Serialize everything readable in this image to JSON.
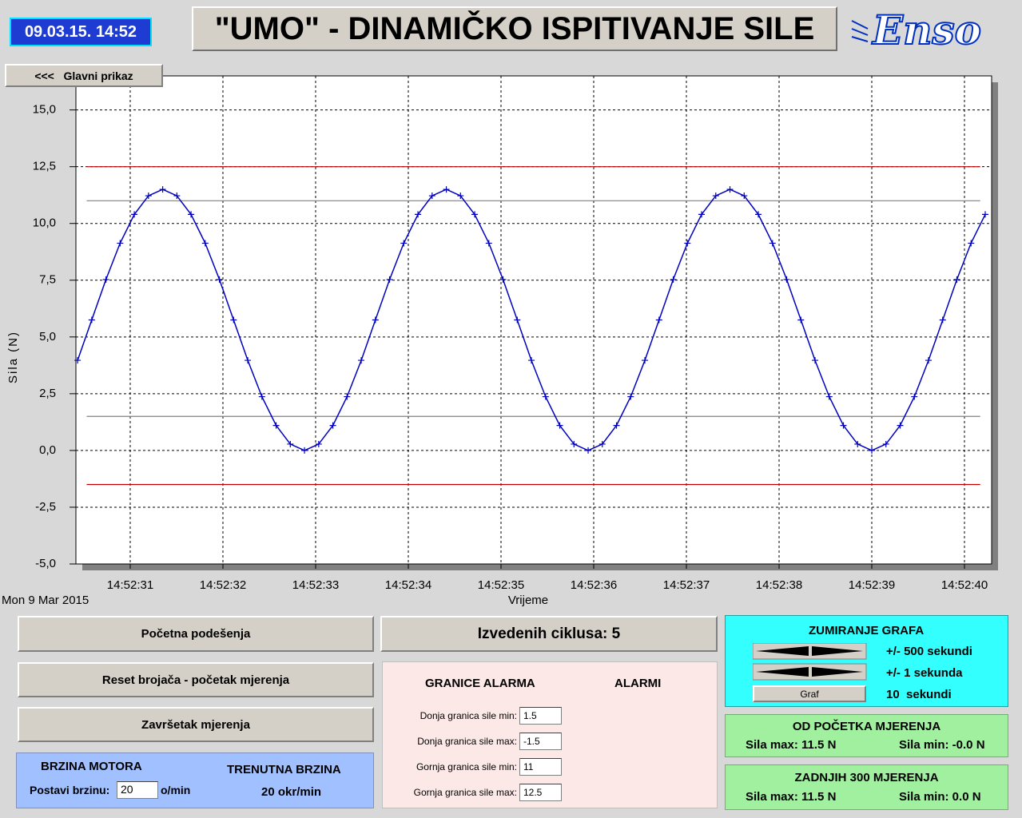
{
  "header": {
    "datetime": "09.03.15. 14:52",
    "title": "\"UMO\" - DINAMIČKO ISPITIVANJE SILE",
    "logo": "Enso"
  },
  "nav_button": "<<<   Glavni prikaz",
  "chart_data": {
    "type": "line",
    "y_label": "Sila (N)",
    "x_label": "Vrijeme",
    "date_label": "Mon 9 Mar 2015",
    "xlim": [
      30.414,
      40.293
    ],
    "ylim": [
      -5,
      16.5
    ],
    "xticks": [
      {
        "value": 31,
        "label": "14:52:31"
      },
      {
        "value": 32,
        "label": "14:52:32"
      },
      {
        "value": 33,
        "label": "14:52:33"
      },
      {
        "value": 34,
        "label": "14:52:34"
      },
      {
        "value": 35,
        "label": "14:52:35"
      },
      {
        "value": 36,
        "label": "14:52:36"
      },
      {
        "value": 37,
        "label": "14:52:37"
      },
      {
        "value": 38,
        "label": "14:52:38"
      },
      {
        "value": 39,
        "label": "14:52:39"
      },
      {
        "value": 40,
        "label": "14:52:40"
      }
    ],
    "yticks": [
      {
        "value": -5,
        "label": "-5,0"
      },
      {
        "value": -2.5,
        "label": "-2,5"
      },
      {
        "value": 0,
        "label": "0,0"
      },
      {
        "value": 2.5,
        "label": "2,5"
      },
      {
        "value": 5,
        "label": "5,0"
      },
      {
        "value": 7.5,
        "label": "7,5"
      },
      {
        "value": 10,
        "label": "10,0"
      },
      {
        "value": 12.5,
        "label": "12,5"
      },
      {
        "value": 15,
        "label": "15,0"
      }
    ],
    "grid": true,
    "x": [
      30.432,
      30.585,
      30.738,
      30.891,
      31.044,
      31.197,
      31.35,
      31.503,
      31.656,
      31.809,
      31.962,
      32.115,
      32.268,
      32.421,
      32.574,
      32.727,
      32.88,
      33.033,
      33.186,
      33.339,
      33.492,
      33.645,
      33.798,
      33.951,
      34.104,
      34.257,
      34.41,
      34.563,
      34.716,
      34.869,
      35.022,
      35.175,
      35.328,
      35.481,
      35.634,
      35.787,
      35.94,
      36.093,
      36.246,
      36.399,
      36.552,
      36.705,
      36.858,
      37.011,
      37.164,
      37.317,
      37.47,
      37.623,
      37.776,
      37.929,
      38.082,
      38.235,
      38.388,
      38.541,
      38.694,
      38.847,
      39.0,
      39.153,
      39.306,
      39.459,
      39.612,
      39.765,
      39.918,
      40.071,
      40.224
    ],
    "series": [
      {
        "color": "#0000c0",
        "values": [
          3.97,
          5.75,
          7.53,
          9.13,
          10.4,
          11.22,
          11.5,
          11.22,
          10.4,
          9.13,
          7.53,
          5.75,
          3.97,
          2.37,
          1.1,
          0.28,
          0,
          0.28,
          1.1,
          2.37,
          3.97,
          5.75,
          7.53,
          9.13,
          10.4,
          11.22,
          11.5,
          11.22,
          10.4,
          9.13,
          7.53,
          5.75,
          3.97,
          2.37,
          1.1,
          0.28,
          0,
          0.28,
          1.1,
          2.37,
          3.97,
          5.75,
          7.53,
          9.13,
          10.4,
          11.22,
          11.5,
          11.22,
          10.4,
          9.13,
          7.53,
          5.75,
          3.97,
          2.37,
          1.1,
          0.28,
          0,
          0.28,
          1.1,
          2.37,
          3.97,
          5.75,
          7.53,
          9.13,
          10.4
        ]
      }
    ],
    "reference_lines": [
      {
        "y": 12.5,
        "x": [
          30.53,
          40.17
        ],
        "color": "#c00000"
      },
      {
        "y": 11,
        "x": [
          30.53,
          40.17
        ],
        "color": "#808080"
      },
      {
        "y": 1.5,
        "x": [
          30.53,
          40.17
        ],
        "color": "#808080"
      },
      {
        "y": -1.5,
        "x": [
          30.53,
          40.17
        ],
        "color": "#c00000"
      }
    ]
  },
  "controls": {
    "buttons": [
      "Početna podešenja",
      "Reset brojača - početak mjerenja",
      "Završetak mjerenja"
    ],
    "motor": {
      "title": "BRZINA MOTORA",
      "set_label": "Postavi brzinu:",
      "set_value": "20",
      "set_unit": "o/min",
      "current_title": "TRENUTNA BRZINA",
      "current_value": "20 okr/min"
    },
    "cycles": "Izvedenih ciklusa: 5",
    "alarms": {
      "title": "GRANICE ALARMA",
      "alarms_title": "ALARMI",
      "rows": [
        [
          "Donja granica sile min:",
          "1.5"
        ],
        [
          "Donja granica sile max:",
          "-1.5"
        ],
        [
          "Gornja granica sile min:",
          "11"
        ],
        [
          "Gornja granica sile max:",
          "12.5"
        ]
      ]
    },
    "zoom": {
      "title": "ZUMIRANJE GRAFA",
      "row1": "+/- 500 sekundi",
      "row2": "+/- 1 sekunda",
      "graf_button": "Graf",
      "row3": "10  sekundi"
    },
    "from_start": {
      "title": "OD POČETKA MJERENJA",
      "max": "Sila max: 11.5 N",
      "min": "Sila min: -0.0 N"
    },
    "last300": {
      "title": "ZADNJIH 300 MJERENJA",
      "max": "Sila max: 11.5 N",
      "min": "Sila min: 0.0 N"
    }
  }
}
